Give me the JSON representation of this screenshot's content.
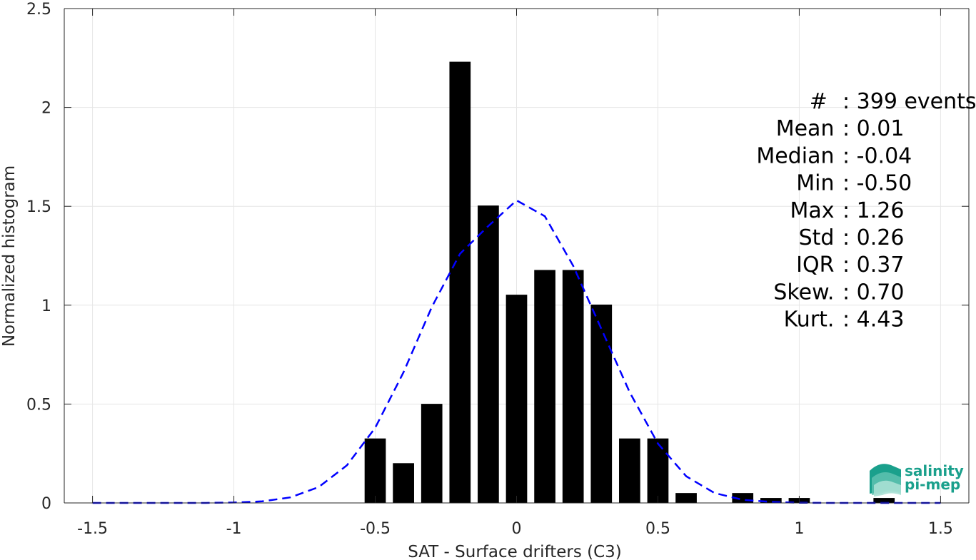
{
  "chart_data": {
    "type": "bar",
    "xlabel": "SAT - Surface drifters (C3)",
    "ylabel": "Normalized histogram",
    "xlim": [
      -1.6,
      1.6
    ],
    "ylim": [
      0,
      2.5
    ],
    "grid": true,
    "x_ticks": [
      -1.5,
      -1,
      -0.5,
      0,
      0.5,
      1,
      1.5
    ],
    "x_tick_labels": [
      "-1.5",
      "-1",
      "-0.5",
      "0",
      "0.5",
      "1",
      "1.5"
    ],
    "y_ticks": [
      0,
      0.5,
      1,
      1.5,
      2,
      2.5
    ],
    "y_tick_labels": [
      "0",
      "0.5",
      "1",
      "1.5",
      "2",
      "2.5"
    ],
    "bar_width": 0.075,
    "bars": {
      "x": [
        -0.5,
        -0.4,
        -0.3,
        -0.2,
        -0.1,
        0.0,
        0.1,
        0.2,
        0.3,
        0.4,
        0.5,
        0.6,
        0.8,
        0.9,
        1.0,
        1.3
      ],
      "values": [
        0.326,
        0.201,
        0.501,
        2.231,
        1.504,
        1.053,
        1.178,
        1.178,
        1.003,
        0.326,
        0.326,
        0.05,
        0.05,
        0.025,
        0.025,
        0.025
      ],
      "color": "#000000"
    },
    "fit_curve": {
      "style": "dashed",
      "color": "#0000ff",
      "x": [
        -1.5,
        -1.4,
        -1.3,
        -1.2,
        -1.1,
        -1.0,
        -0.9,
        -0.8,
        -0.7,
        -0.6,
        -0.5,
        -0.4,
        -0.3,
        -0.2,
        -0.1,
        0.0,
        0.1,
        0.2,
        0.3,
        0.4,
        0.5,
        0.6,
        0.7,
        0.8,
        0.9,
        1.0,
        1.1,
        1.2,
        1.3,
        1.4,
        1.5
      ],
      "y": [
        0.0,
        0.0,
        0.0,
        0.0,
        0.0,
        0.002,
        0.008,
        0.028,
        0.08,
        0.19,
        0.38,
        0.66,
        0.99,
        1.26,
        1.4,
        1.53,
        1.45,
        1.2,
        0.88,
        0.56,
        0.3,
        0.135,
        0.05,
        0.016,
        0.005,
        0.001,
        0.0,
        0.0,
        0.0,
        0.0,
        0.0
      ]
    },
    "annotations": [
      {
        "label": "#  ",
        "value": ": 399 events"
      },
      {
        "label": "Mean ",
        "value": ": 0.01"
      },
      {
        "label": "Median ",
        "value": ": -0.04"
      },
      {
        "label": "Min ",
        "value": ": -0.50"
      },
      {
        "label": "Max ",
        "value": ": 1.26"
      },
      {
        "label": "Std ",
        "value": ": 0.26"
      },
      {
        "label": "IQR ",
        "value": ": 0.37"
      },
      {
        "label": "Skew. ",
        "value": ": 0.70"
      },
      {
        "label": "Kurt. ",
        "value": ": 4.43"
      }
    ]
  },
  "logo": {
    "line1": "salinity",
    "line2": "pi-mep",
    "color": "#1aa08c"
  }
}
